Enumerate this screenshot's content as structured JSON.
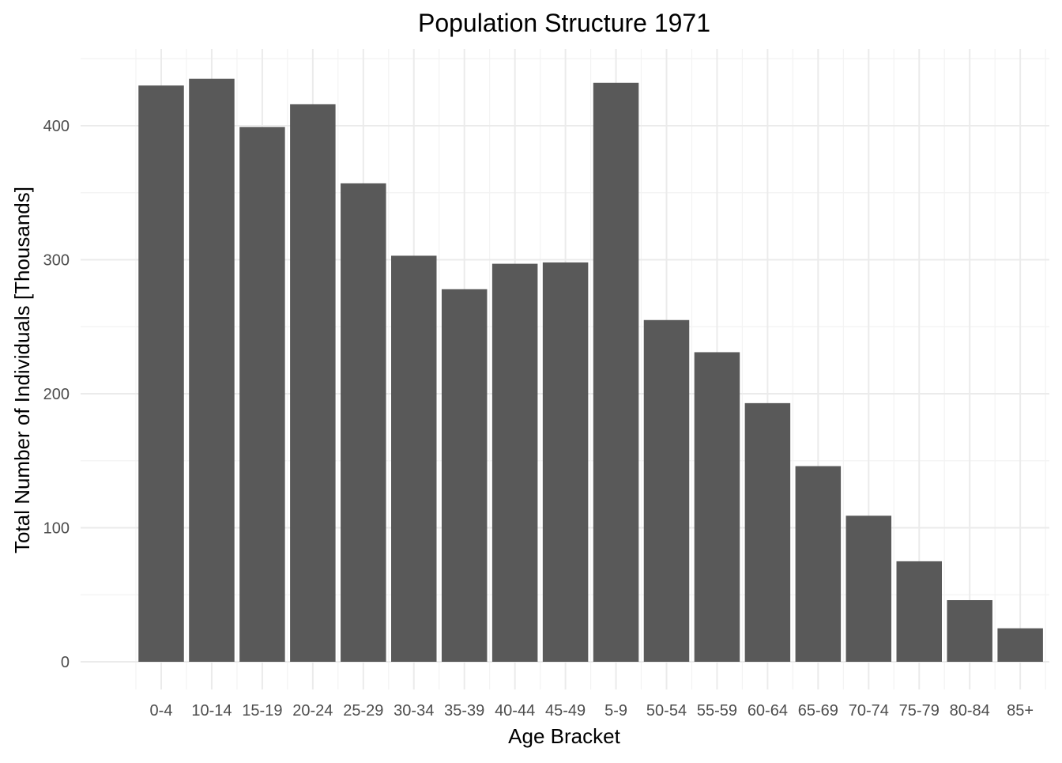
{
  "chart_data": {
    "type": "bar",
    "title": "Population Structure 1971",
    "xlabel": "Age Bracket",
    "ylabel": "Total Number of Individuals [Thousands]",
    "categories": [
      "0-4",
      "10-14",
      "15-19",
      "20-24",
      "25-29",
      "30-34",
      "35-39",
      "40-44",
      "45-49",
      "5-9",
      "50-54",
      "55-59",
      "60-64",
      "65-69",
      "70-74",
      "75-79",
      "80-84",
      "85+"
    ],
    "values": [
      430,
      435,
      399,
      416,
      357,
      303,
      278,
      297,
      298,
      432,
      255,
      231,
      193,
      146,
      109,
      75,
      46,
      25
    ],
    "ylim": [
      0,
      450
    ],
    "yticks": [
      0,
      100,
      200,
      300,
      400
    ],
    "bar_color": "#595959",
    "grid": true,
    "legend": "none"
  }
}
